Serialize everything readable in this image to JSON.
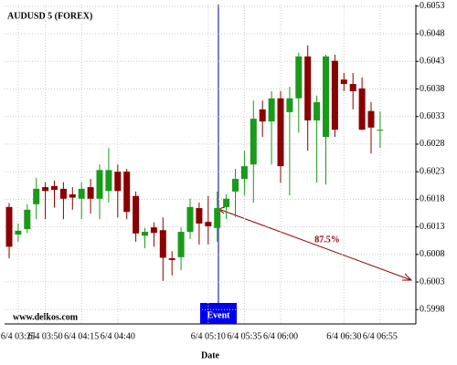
{
  "chart_data": {
    "type": "candlestick",
    "title": "AUDUSD 5 (FOREX)",
    "xlabel": "Date",
    "categories": [
      null,
      "6/4 03:25",
      null,
      null,
      "6/4 03:50",
      null,
      null,
      null,
      "6/4 04:15",
      null,
      null,
      null,
      "6/4 04:40",
      null,
      null,
      null,
      null,
      null,
      null,
      null,
      null,
      null,
      "6/4 05:10",
      null,
      null,
      null,
      "6/4 05:35",
      null,
      null,
      null,
      "6/4 06:00",
      null,
      null,
      null,
      null,
      null,
      null,
      "6/4 06:30",
      null,
      null,
      null,
      "6/4 06:55"
    ],
    "open": [
      0.60166,
      0.60116,
      0.60126,
      0.60171,
      0.60202,
      0.60204,
      0.60199,
      0.60189,
      0.60181,
      0.60202,
      0.60181,
      0.60195,
      0.6023,
      0.6023,
      0.60186,
      0.60114,
      0.60129,
      0.60124,
      0.60073,
      0.60075,
      0.60121,
      0.60164,
      0.60139,
      0.60128,
      0.60166,
      0.60194,
      0.60217,
      0.60243,
      0.60343,
      0.60321,
      0.60363,
      0.60338,
      0.60363,
      0.60439,
      0.60323,
      0.60293,
      0.60431,
      0.60397,
      0.60389,
      0.60381,
      0.6034,
      0.60306
    ],
    "high": [
      0.60173,
      0.60136,
      0.60171,
      0.60219,
      0.60211,
      0.60214,
      0.60211,
      0.60202,
      0.60211,
      0.60217,
      0.60243,
      0.60273,
      0.60243,
      0.60235,
      0.60194,
      0.60128,
      0.60138,
      0.60147,
      0.60086,
      0.60129,
      0.60181,
      0.60174,
      0.60186,
      0.60194,
      0.60189,
      0.60235,
      0.60268,
      0.60359,
      0.60359,
      0.60376,
      0.60376,
      0.60384,
      0.60446,
      0.60459,
      0.60368,
      0.60442,
      0.60442,
      0.60409,
      0.60409,
      0.60401,
      0.60356,
      0.60339
    ],
    "low": [
      0.60073,
      0.60103,
      0.60119,
      0.60144,
      0.60144,
      0.60165,
      0.60144,
      0.60161,
      0.60144,
      0.60154,
      0.60144,
      0.60174,
      0.60147,
      0.60144,
      0.60103,
      0.60091,
      0.60094,
      0.60032,
      0.60042,
      0.60051,
      0.60108,
      0.60098,
      0.60098,
      0.60103,
      0.60144,
      0.60148,
      0.60187,
      0.60174,
      0.60293,
      0.60243,
      0.6021,
      0.60187,
      0.60301,
      0.60268,
      0.6021,
      0.60207,
      0.60293,
      0.60376,
      0.60343,
      0.60306,
      0.60263,
      0.60273
    ],
    "close": [
      0.60094,
      0.60123,
      0.60161,
      0.60199,
      0.60195,
      0.60197,
      0.60181,
      0.60183,
      0.60199,
      0.60181,
      0.60233,
      0.60233,
      0.60195,
      0.60157,
      0.60118,
      0.60121,
      0.60119,
      0.60074,
      0.6007,
      0.60121,
      0.60166,
      0.60136,
      0.60131,
      0.60164,
      0.60181,
      0.60217,
      0.6024,
      0.60326,
      0.60321,
      0.60363,
      0.6024,
      0.60363,
      0.60439,
      0.60323,
      0.60356,
      0.60439,
      0.60306,
      0.60389,
      0.60376,
      0.60306,
      0.6031,
      0.60306
    ],
    "up_color": "#1a9a1a",
    "down_color": "#8b0000",
    "ylim": [
      0.59954,
      0.60533
    ],
    "yticks": [
      0.5998,
      0.6003,
      0.6008,
      0.6013,
      0.6018,
      0.6023,
      0.6028,
      0.6033,
      0.6038,
      0.6043,
      0.6048,
      0.6053
    ],
    "grid": true,
    "annotations": {
      "watermark": "www.delkos.com",
      "event": "Event",
      "forecast": "87.5%"
    }
  }
}
